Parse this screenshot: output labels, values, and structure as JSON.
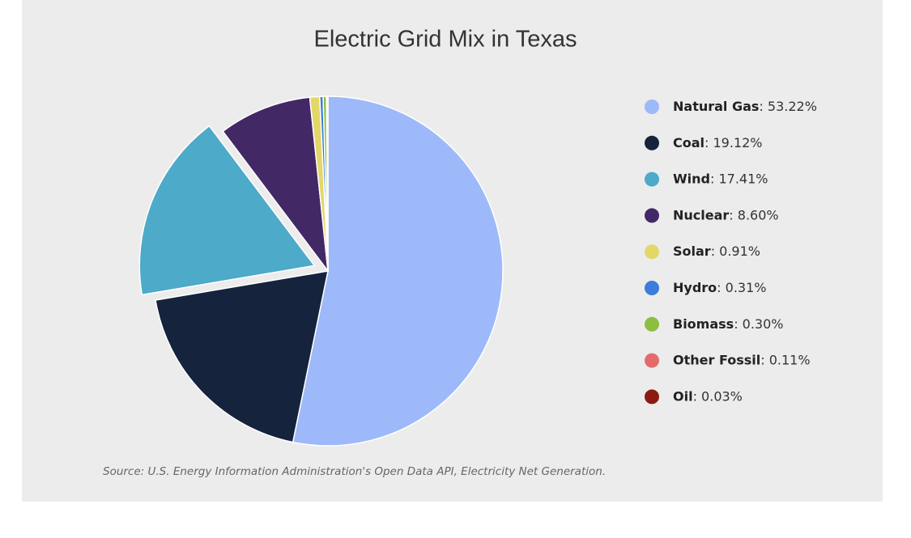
{
  "chart_data": {
    "type": "pie",
    "title": "Electric Grid Mix in Texas",
    "categories": [
      "Natural Gas",
      "Coal",
      "Wind",
      "Nuclear",
      "Solar",
      "Hydro",
      "Biomass",
      "Other Fossil",
      "Oil"
    ],
    "values": [
      53.22,
      19.12,
      17.41,
      8.6,
      0.91,
      0.31,
      0.3,
      0.11,
      0.03
    ],
    "value_labels": [
      ": 53.22%",
      ": 19.12%",
      ": 17.41%",
      ": 8.60%",
      ": 0.91%",
      ": 0.31%",
      ": 0.30%",
      ": 0.11%",
      ": 0.03%"
    ],
    "colors": [
      "#9db9f9",
      "#15233d",
      "#4daac8",
      "#432866",
      "#e3d768",
      "#3b7dd8",
      "#8cbf3f",
      "#e46b6b",
      "#8b1a12"
    ],
    "exploded": "Wind",
    "legend": "right",
    "source": "Source: U.S. Energy Information Administration's Open Data API, Electricity Net Generation."
  }
}
